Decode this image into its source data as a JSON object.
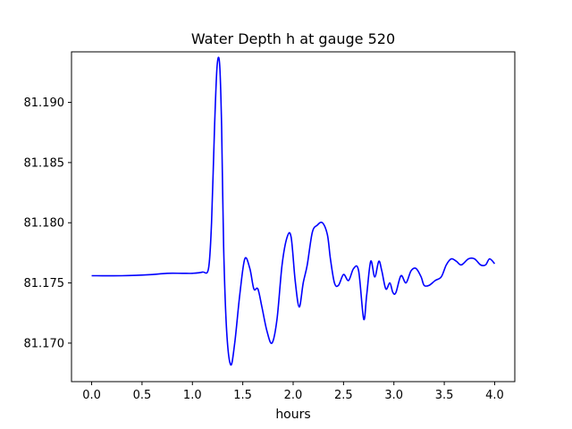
{
  "chart_data": {
    "type": "line",
    "title": "Water Depth h at gauge 520",
    "xlabel": "hours",
    "ylabel": "",
    "xlim": [
      -0.2,
      4.2
    ],
    "ylim": [
      81.1668,
      81.1942
    ],
    "grid": false,
    "line_color": "#0000ff",
    "x_ticks": [
      0.0,
      0.5,
      1.0,
      1.5,
      2.0,
      2.5,
      3.0,
      3.5,
      4.0
    ],
    "x_tick_labels": [
      "0.0",
      "0.5",
      "1.0",
      "1.5",
      "2.0",
      "2.5",
      "3.0",
      "3.5",
      "4.0"
    ],
    "y_ticks": [
      81.17,
      81.175,
      81.18,
      81.185,
      81.19
    ],
    "y_tick_labels": [
      "81.170",
      "81.175",
      "81.180",
      "81.185",
      "81.190"
    ],
    "series": [
      {
        "x": [
          0.0,
          0.05,
          0.3,
          0.6,
          0.75,
          0.9,
          1.0,
          1.1,
          1.16,
          1.19,
          1.22,
          1.245,
          1.27,
          1.29,
          1.31,
          1.34,
          1.38,
          1.42,
          1.47,
          1.52,
          1.57,
          1.61,
          1.65,
          1.69,
          1.74,
          1.79,
          1.84,
          1.89,
          1.94,
          1.98,
          2.02,
          2.06,
          2.1,
          2.14,
          2.19,
          2.24,
          2.29,
          2.34,
          2.37,
          2.41,
          2.45,
          2.5,
          2.55,
          2.6,
          2.65,
          2.7,
          2.73,
          2.77,
          2.81,
          2.85,
          2.88,
          2.92,
          2.96,
          2.99,
          3.02,
          3.07,
          3.12,
          3.17,
          3.22,
          3.27,
          3.3,
          3.35,
          3.41,
          3.47,
          3.52,
          3.57,
          3.62,
          3.67,
          3.74,
          3.8,
          3.86,
          3.91,
          3.95,
          4.0
        ],
        "y": [
          81.1756,
          81.1756,
          81.1756,
          81.1757,
          81.1758,
          81.1758,
          81.1758,
          81.1759,
          81.1762,
          81.18,
          81.188,
          81.193,
          81.1932,
          81.188,
          81.178,
          81.171,
          81.1682,
          81.17,
          81.174,
          81.177,
          81.1762,
          81.1745,
          81.1745,
          81.173,
          81.171,
          81.17,
          81.172,
          81.1765,
          81.1788,
          81.1788,
          81.1752,
          81.173,
          81.175,
          81.1765,
          81.1792,
          81.1798,
          81.18,
          81.179,
          81.177,
          81.175,
          81.1748,
          81.1757,
          81.1752,
          81.1762,
          81.176,
          81.172,
          81.174,
          81.1768,
          81.1755,
          81.1768,
          81.176,
          81.1745,
          81.175,
          81.1742,
          81.1742,
          81.1756,
          81.175,
          81.176,
          81.1762,
          81.1755,
          81.1748,
          81.1748,
          81.1752,
          81.1755,
          81.1765,
          81.177,
          81.1768,
          81.1765,
          81.177,
          81.177,
          81.1765,
          81.1765,
          81.177,
          81.1766
        ]
      }
    ]
  }
}
